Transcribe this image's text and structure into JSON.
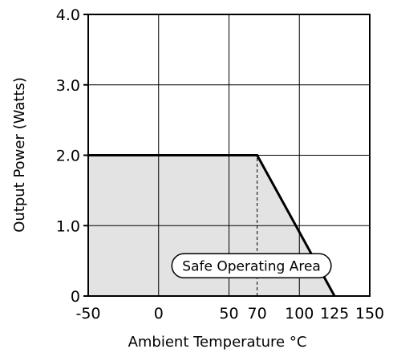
{
  "chart_data": {
    "type": "area",
    "xlabel": "Ambient Temperature °C",
    "ylabel": "Output Power (Watts)",
    "xlim": [
      -50,
      150
    ],
    "ylim": [
      0,
      4.0
    ],
    "x_ticks": [
      {
        "value": -50,
        "label": "-50"
      },
      {
        "value": 0,
        "label": "0"
      },
      {
        "value": 50,
        "label": "50"
      },
      {
        "value": 70,
        "label": "70"
      },
      {
        "value": 100,
        "label": "100"
      },
      {
        "value": 125,
        "label": "125"
      },
      {
        "value": 150,
        "label": "150"
      }
    ],
    "y_ticks": [
      {
        "value": 0,
        "label": "0"
      },
      {
        "value": 1.0,
        "label": "1.0"
      },
      {
        "value": 2.0,
        "label": "2.0"
      },
      {
        "value": 3.0,
        "label": "3.0"
      },
      {
        "value": 4.0,
        "label": "4.0"
      }
    ],
    "x_grid": [
      0,
      50,
      100,
      150
    ],
    "y_grid": [
      1.0,
      2.0,
      3.0
    ],
    "grid": true,
    "series": [
      {
        "x": [
          -50,
          70,
          125
        ],
        "y": [
          2.0,
          2.0,
          0
        ]
      }
    ],
    "reference_lines": [
      {
        "x": 70,
        "y_from": 0,
        "y_to": 2.0,
        "style": "dashed"
      }
    ],
    "annotations": [
      {
        "text": "Safe Operating Area",
        "x": 66,
        "y": 0.43,
        "boxed": true
      }
    ],
    "fill_color": "#e3e3e3",
    "line_color": "#000000"
  }
}
